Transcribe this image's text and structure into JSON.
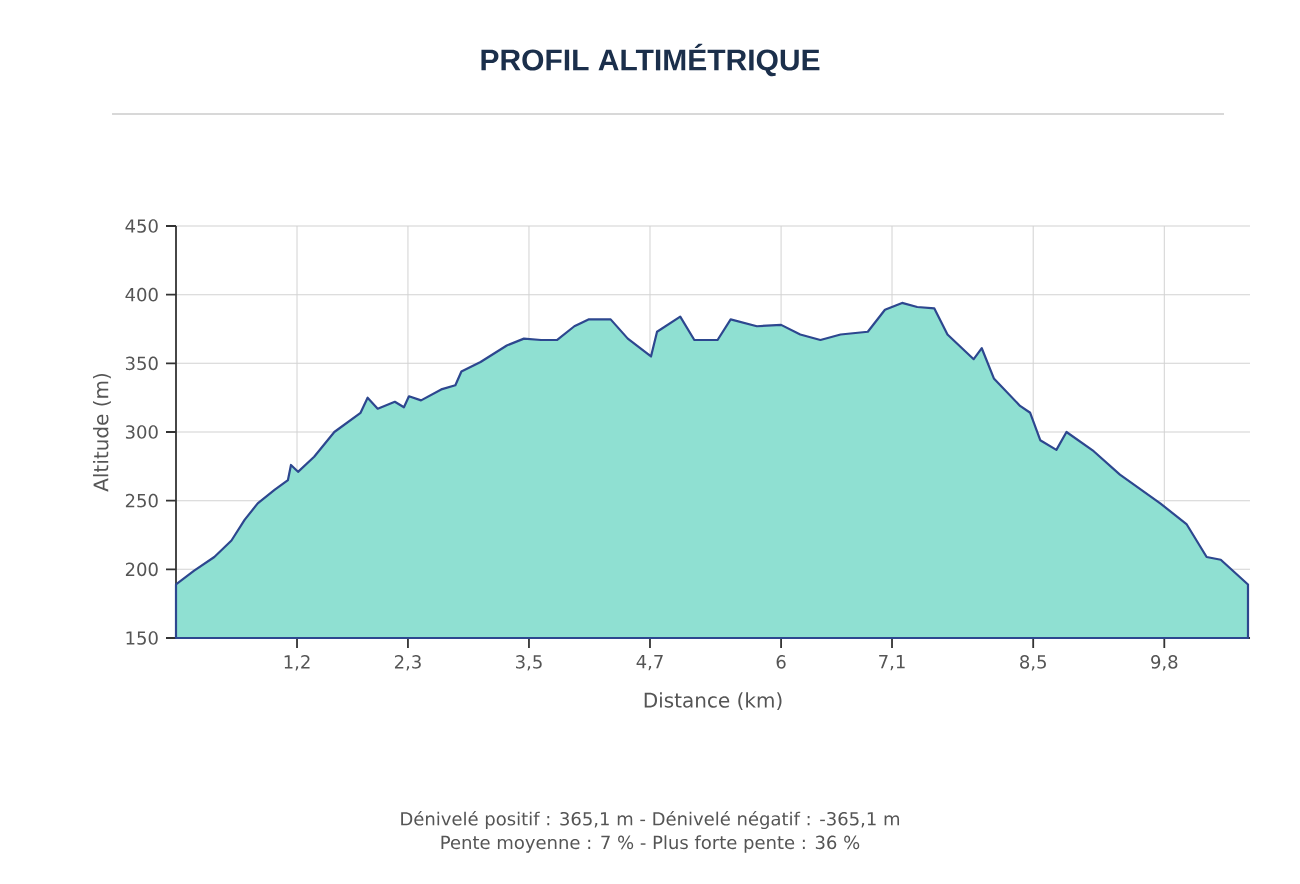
{
  "chart_data": {
    "type": "area",
    "title": "PROFIL ALTIMÉTRIQUE",
    "xlabel": "Distance (km)",
    "ylabel": "Altitude (m)",
    "annotations": [
      "Dénivelé positif : 365,1 m - Dénivelé négatif : -365,1 m",
      "Pente moyenne : 7 % - Plus forte pente : 36 %"
    ],
    "x": [
      0,
      0.18,
      0.38,
      0.55,
      0.68,
      0.81,
      0.98,
      1.11,
      1.14,
      1.21,
      1.37,
      1.57,
      1.7,
      1.83,
      1.9,
      2.0,
      2.17,
      2.26,
      2.31,
      2.43,
      2.63,
      2.77,
      2.83,
      3.02,
      3.28,
      3.45,
      3.62,
      3.78,
      3.95,
      4.09,
      4.31,
      4.48,
      4.71,
      4.77,
      5.0,
      5.14,
      5.37,
      5.5,
      5.76,
      6.0,
      6.19,
      6.39,
      6.59,
      6.86,
      7.03,
      7.2,
      7.35,
      7.52,
      7.65,
      7.91,
      7.99,
      8.11,
      8.37,
      8.47,
      8.57,
      8.73,
      8.83,
      9.1,
      9.36,
      9.76,
      10.02,
      10.22,
      10.36,
      10.63
    ],
    "values": [
      189,
      199,
      209,
      221,
      236,
      248,
      258,
      265,
      276,
      271,
      282,
      300,
      307,
      314,
      325,
      317,
      322,
      318,
      326,
      323,
      331,
      334,
      344,
      351,
      363,
      368,
      367,
      367,
      377,
      382,
      382,
      368,
      355,
      373,
      384,
      367,
      367,
      382,
      377,
      378,
      371,
      367,
      371,
      373,
      389,
      394,
      391,
      390,
      371,
      353,
      361,
      339,
      319,
      314,
      294,
      287,
      300,
      286,
      269,
      248,
      233,
      209,
      207,
      189
    ],
    "color": "#8fe0d2",
    "xlim": [
      0,
      10.65
    ],
    "ylim": [
      150,
      450
    ],
    "xticks": [
      {
        "value": 1.2,
        "label": "1,2"
      },
      {
        "value": 2.3,
        "label": "2,3"
      },
      {
        "value": 3.5,
        "label": "3,5"
      },
      {
        "value": 4.7,
        "label": "4,7"
      },
      6,
      {
        "value": 7.1,
        "label": "7,1"
      },
      {
        "value": 8.5,
        "label": "8,5"
      },
      {
        "value": 9.8,
        "label": "9,8"
      }
    ],
    "yticks": [
      150,
      200,
      250,
      300,
      350,
      400,
      450
    ],
    "grid": true
  }
}
